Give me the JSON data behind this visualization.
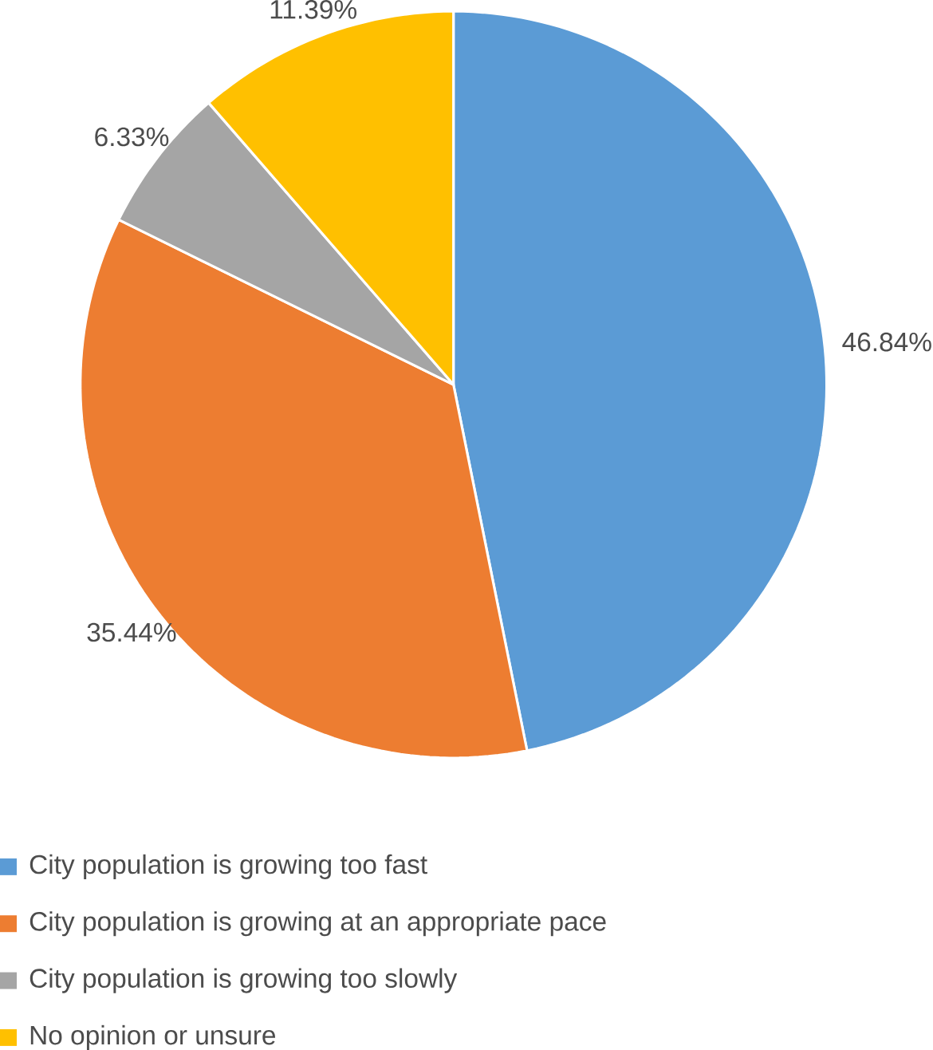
{
  "chart_data": {
    "type": "pie",
    "categories": [
      "City population is growing too fast",
      "City population is growing at an appropriate pace",
      "City population is growing too slowly",
      "No opinion or unsure"
    ],
    "values": [
      46.84,
      35.44,
      6.33,
      11.39
    ],
    "colors": [
      "#5b9bd5",
      "#ed7d31",
      "#a5a5a5",
      "#ffc000"
    ],
    "value_labels": [
      "46.84%",
      "35.44%",
      "6.33%",
      "11.39%"
    ],
    "legend": "bottom"
  }
}
